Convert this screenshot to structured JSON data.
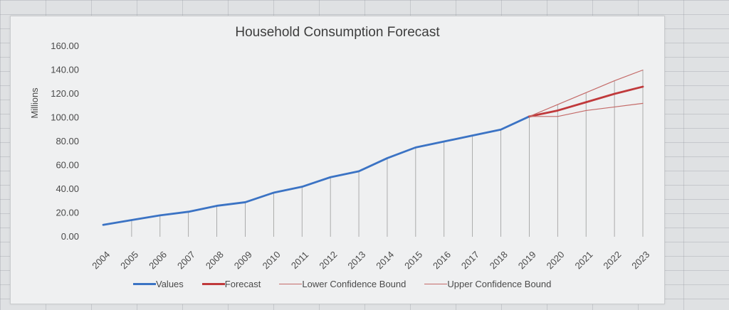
{
  "chart_data": {
    "type": "line",
    "title": "Household Consumption Forecast",
    "xlabel": "",
    "ylabel": "Millions",
    "ylim": [
      0,
      160
    ],
    "yticks": [
      "0.00",
      "20.00",
      "40.00",
      "60.00",
      "80.00",
      "100.00",
      "120.00",
      "140.00",
      "160.00"
    ],
    "categories": [
      "2004",
      "2005",
      "2006",
      "2007",
      "2008",
      "2009",
      "2010",
      "2011",
      "2012",
      "2013",
      "2014",
      "2015",
      "2016",
      "2017",
      "2018",
      "2019",
      "2020",
      "2021",
      "2022",
      "2023"
    ],
    "grid": "vertical drop lines",
    "legend_position": "bottom",
    "series": [
      {
        "name": "Values",
        "color": "#3b73c4",
        "values": [
          10,
          14,
          18,
          21,
          26,
          29,
          37,
          42,
          50,
          55,
          66,
          75,
          80,
          85,
          90,
          101,
          null,
          null,
          null,
          null
        ]
      },
      {
        "name": "Forecast",
        "color": "#c0393b",
        "values": [
          null,
          null,
          null,
          null,
          null,
          null,
          null,
          null,
          null,
          null,
          null,
          null,
          null,
          null,
          null,
          101,
          106,
          113,
          120,
          126
        ]
      },
      {
        "name": "Lower Confidence Bound",
        "color": "#c46a68",
        "values": [
          null,
          null,
          null,
          null,
          null,
          null,
          null,
          null,
          null,
          null,
          null,
          null,
          null,
          null,
          null,
          101,
          101,
          106,
          109,
          112
        ]
      },
      {
        "name": "Upper Confidence Bound",
        "color": "#c46a68",
        "values": [
          null,
          null,
          null,
          null,
          null,
          null,
          null,
          null,
          null,
          null,
          null,
          null,
          null,
          null,
          null,
          101,
          111,
          121,
          131,
          140
        ]
      }
    ]
  }
}
